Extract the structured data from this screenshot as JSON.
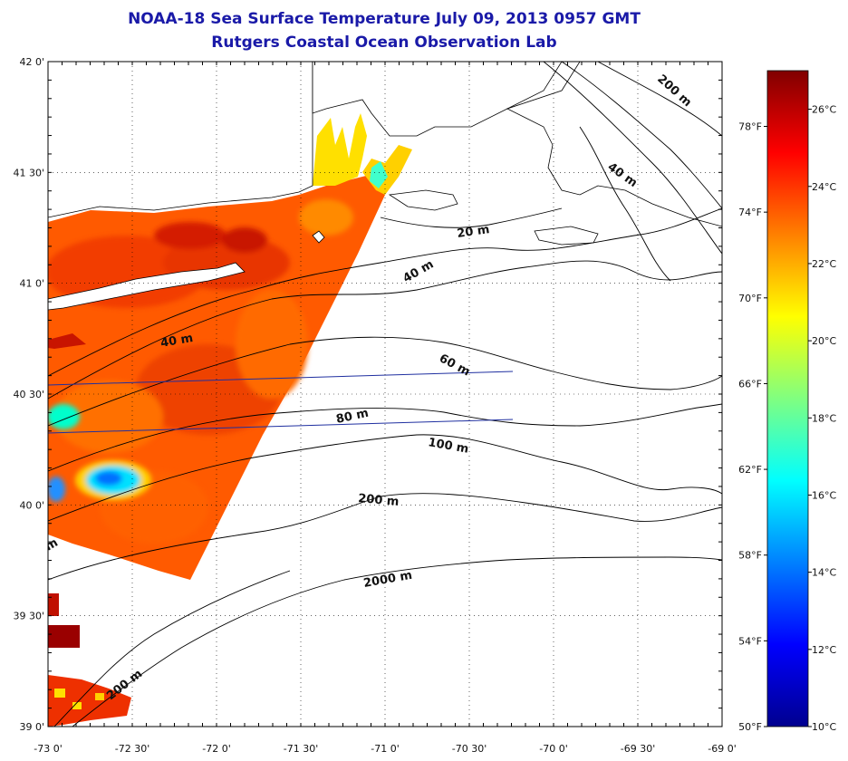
{
  "title_line1": "NOAA-18 Sea Surface Temperature July 09, 2013 0957 GMT",
  "title_line2": "Rutgers Coastal Ocean Observation Lab",
  "map": {
    "lon_range": [
      -73.0,
      -69.0
    ],
    "lat_range": [
      39.0,
      42.0
    ],
    "lat_labels": [
      {
        "value": 42.0,
        "text": "42 0'"
      },
      {
        "value": 41.5,
        "text": "41 30'"
      },
      {
        "value": 41.0,
        "text": "41 0'"
      },
      {
        "value": 40.5,
        "text": "40 30'"
      },
      {
        "value": 40.0,
        "text": "40 0'"
      },
      {
        "value": 39.5,
        "text": "39 30'"
      },
      {
        "value": 39.0,
        "text": "39 0'"
      }
    ],
    "lon_labels": [
      {
        "value": -73.0,
        "text": "-73 0'"
      },
      {
        "value": -72.5,
        "text": "-72 30'"
      },
      {
        "value": -72.0,
        "text": "-72 0'"
      },
      {
        "value": -71.5,
        "text": "-71 30'"
      },
      {
        "value": -71.0,
        "text": "-71 0'"
      },
      {
        "value": -70.5,
        "text": "-70 30'"
      },
      {
        "value": -70.0,
        "text": "-70 0'"
      },
      {
        "value": -69.5,
        "text": "-69 30'"
      },
      {
        "value": -69.0,
        "text": "-69 0'"
      }
    ],
    "depth_labels": [
      "20 m",
      "40 m",
      "40 m",
      "40 m",
      "60 m",
      "80 m",
      "100 m",
      "200 m",
      "200 m",
      "200 m",
      "2000 m",
      "m"
    ]
  },
  "colorbar": {
    "celsius_range": [
      10,
      27
    ],
    "celsius_ticks": [
      {
        "value": 10,
        "text": "10°C"
      },
      {
        "value": 12,
        "text": "12°C"
      },
      {
        "value": 14,
        "text": "14°C"
      },
      {
        "value": 16,
        "text": "16°C"
      },
      {
        "value": 18,
        "text": "18°C"
      },
      {
        "value": 20,
        "text": "20°C"
      },
      {
        "value": 22,
        "text": "22°C"
      },
      {
        "value": 24,
        "text": "24°C"
      },
      {
        "value": 26,
        "text": "26°C"
      }
    ],
    "fahrenheit_ticks": [
      {
        "value": 50,
        "text": "50°F"
      },
      {
        "value": 54,
        "text": "54°F"
      },
      {
        "value": 58,
        "text": "58°F"
      },
      {
        "value": 62,
        "text": "62°F"
      },
      {
        "value": 66,
        "text": "66°F"
      },
      {
        "value": 70,
        "text": "70°F"
      },
      {
        "value": 74,
        "text": "74°F"
      },
      {
        "value": 78,
        "text": "78°F"
      }
    ],
    "colors": [
      "#00008f",
      "#0000ff",
      "#0080ff",
      "#00ffff",
      "#80ff80",
      "#ffff00",
      "#ff8000",
      "#ff0000",
      "#800000"
    ]
  }
}
